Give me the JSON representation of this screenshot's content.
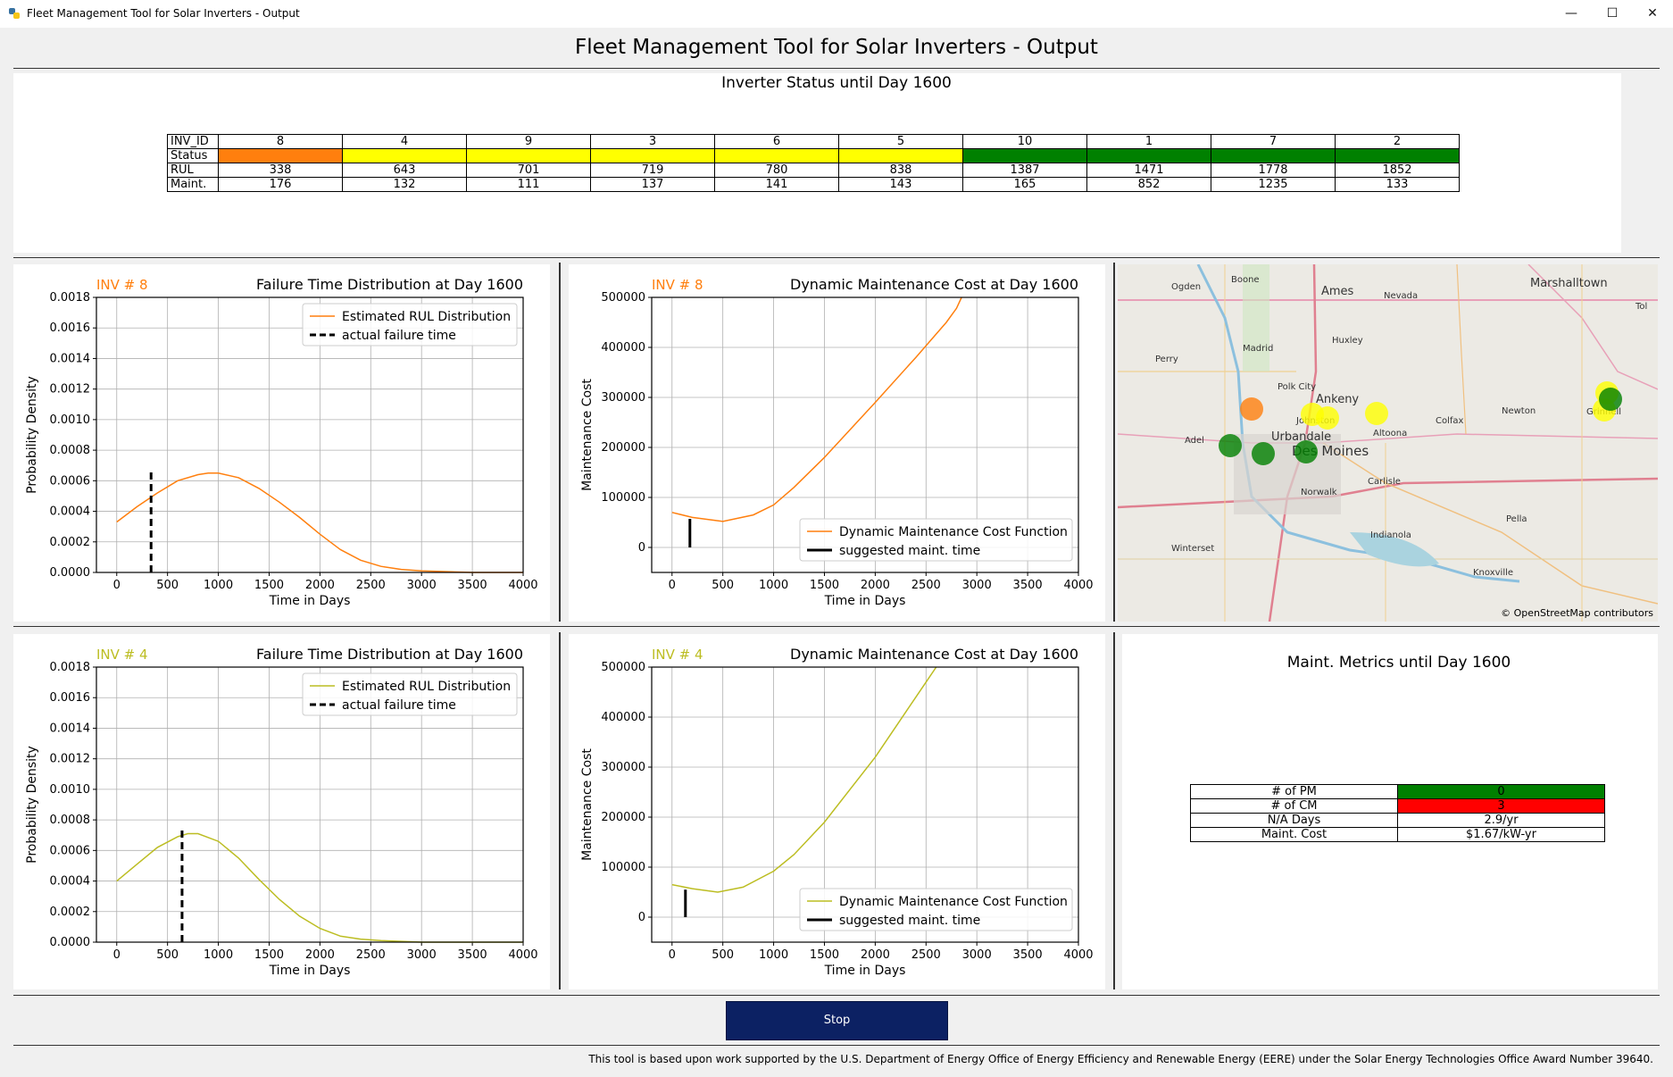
{
  "window": {
    "title": "Fleet Management Tool for Solar Inverters - Output",
    "minimize_icon": "minimize-icon",
    "maximize_icon": "maximize-icon",
    "close_icon": "close-icon"
  },
  "main_title": "Fleet Management Tool for Solar Inverters - Output",
  "status_panel": {
    "title": "Inverter Status until Day 1600",
    "row_labels": [
      "INV_ID",
      "Status",
      "RUL",
      "Maint."
    ],
    "inv_ids": [
      "8",
      "4",
      "9",
      "3",
      "6",
      "5",
      "10",
      "1",
      "7",
      "2"
    ],
    "status_colors": [
      "#ff7f0e",
      "#ffff00",
      "#ffff00",
      "#ffff00",
      "#ffff00",
      "#ffff00",
      "#008000",
      "#008000",
      "#008000",
      "#008000"
    ],
    "rul": [
      "338",
      "643",
      "701",
      "719",
      "780",
      "838",
      "1387",
      "1471",
      "1778",
      "1852"
    ],
    "maint": [
      "176",
      "132",
      "111",
      "137",
      "141",
      "143",
      "165",
      "852",
      "1235",
      "133"
    ]
  },
  "plots": {
    "p1": {
      "inv_label": "INV # 8",
      "title": "Failure Time Distribution at Day 1600",
      "legend": [
        "Estimated RUL Distribution",
        "actual failure time"
      ],
      "xlabel": "Time in Days",
      "ylabel": "Probability Density"
    },
    "p2": {
      "inv_label": "INV # 8",
      "title": "Dynamic Maintenance Cost at Day 1600",
      "legend": [
        "Dynamic Maintenance Cost Function",
        "suggested maint. time"
      ],
      "xlabel": "Time in Days",
      "ylabel": "Maintenance Cost"
    },
    "p3": {
      "inv_label": "INV # 4",
      "title": "Failure Time Distribution at Day 1600",
      "legend": [
        "Estimated RUL Distribution",
        "actual failure time"
      ],
      "xlabel": "Time in Days",
      "ylabel": "Probability Density"
    },
    "p4": {
      "inv_label": "INV # 4",
      "title": "Dynamic Maintenance Cost at Day 1600",
      "legend": [
        "Dynamic Maintenance Cost Function",
        "suggested maint. time"
      ],
      "xlabel": "Time in Days",
      "ylabel": "Maintenance Cost"
    }
  },
  "chart_data": [
    {
      "type": "line",
      "id": "p1",
      "title": "Failure Time Distribution at Day 1600",
      "xlabel": "Time in Days",
      "ylabel": "Probability Density",
      "xlim": [
        -200,
        4000
      ],
      "ylim": [
        0,
        0.0018
      ],
      "xticks": [
        "0",
        "500",
        "1000",
        "1500",
        "2000",
        "2500",
        "3000",
        "3500",
        "4000"
      ],
      "yticks": [
        "0.0000",
        "0.0002",
        "0.0004",
        "0.0006",
        "0.0008",
        "0.0010",
        "0.0012",
        "0.0014",
        "0.0016",
        "0.0018"
      ],
      "grid": true,
      "legend_position": "top-right",
      "series": [
        {
          "name": "Estimated RUL Distribution",
          "color": "#ff7f0e",
          "x": [
            0,
            200,
            400,
            600,
            800,
            900,
            1000,
            1200,
            1400,
            1600,
            1800,
            2000,
            2200,
            2400,
            2600,
            2800,
            3000,
            3500,
            4000
          ],
          "y": [
            0.00033,
            0.00043,
            0.00052,
            0.0006,
            0.00064,
            0.00065,
            0.00065,
            0.00062,
            0.00055,
            0.00046,
            0.00036,
            0.00025,
            0.00015,
            8e-05,
            4e-05,
            2e-05,
            1e-05,
            0.0,
            0.0
          ]
        }
      ],
      "marker": {
        "name": "actual failure time",
        "x": 338,
        "y_top": 0.00067,
        "style": "dashed"
      }
    },
    {
      "type": "line",
      "id": "p2",
      "title": "Dynamic Maintenance Cost at Day 1600",
      "xlabel": "Time in Days",
      "ylabel": "Maintenance Cost",
      "xlim": [
        -200,
        4000
      ],
      "ylim": [
        -50000,
        500000
      ],
      "xticks": [
        "0",
        "500",
        "1000",
        "1500",
        "2000",
        "2500",
        "3000",
        "3500",
        "4000"
      ],
      "yticks": [
        "0",
        "100000",
        "200000",
        "300000",
        "400000",
        "500000"
      ],
      "grid": true,
      "legend_position": "bottom-right",
      "series": [
        {
          "name": "Dynamic Maintenance Cost Function",
          "color": "#ff7f0e",
          "x": [
            0,
            200,
            500,
            800,
            1000,
            1200,
            1500,
            2000,
            2400,
            2700,
            2800,
            2850
          ],
          "y": [
            70000,
            60000,
            52000,
            65000,
            85000,
            120000,
            180000,
            290000,
            380000,
            450000,
            478000,
            500000
          ]
        }
      ],
      "marker": {
        "name": "suggested maint. time",
        "x": 176,
        "y0": 0,
        "y1": 57000,
        "style": "solid"
      }
    },
    {
      "type": "line",
      "id": "p3",
      "title": "Failure Time Distribution at Day 1600",
      "xlabel": "Time in Days",
      "ylabel": "Probability Density",
      "xlim": [
        -200,
        4000
      ],
      "ylim": [
        0,
        0.0018
      ],
      "xticks": [
        "0",
        "500",
        "1000",
        "1500",
        "2000",
        "2500",
        "3000",
        "3500",
        "4000"
      ],
      "yticks": [
        "0.0000",
        "0.0002",
        "0.0004",
        "0.0006",
        "0.0008",
        "0.0010",
        "0.0012",
        "0.0014",
        "0.0016",
        "0.0018"
      ],
      "grid": true,
      "legend_position": "top-right",
      "series": [
        {
          "name": "Estimated RUL Distribution",
          "color": "#bcbd22",
          "x": [
            0,
            200,
            400,
            600,
            700,
            800,
            1000,
            1200,
            1400,
            1600,
            1800,
            2000,
            2200,
            2400,
            2600,
            3000,
            3500,
            4000
          ],
          "y": [
            0.0004,
            0.00051,
            0.00062,
            0.00069,
            0.00071,
            0.00071,
            0.00066,
            0.00055,
            0.00041,
            0.00028,
            0.00017,
            9e-05,
            4e-05,
            2e-05,
            1e-05,
            0.0,
            0.0,
            0.0
          ]
        }
      ],
      "marker": {
        "name": "actual failure time",
        "x": 643,
        "y_top": 0.00075,
        "style": "dashed"
      }
    },
    {
      "type": "line",
      "id": "p4",
      "title": "Dynamic Maintenance Cost at Day 1600",
      "xlabel": "Time in Days",
      "ylabel": "Maintenance Cost",
      "xlim": [
        -200,
        4000
      ],
      "ylim": [
        -50000,
        500000
      ],
      "xticks": [
        "0",
        "500",
        "1000",
        "1500",
        "2000",
        "2500",
        "3000",
        "3500",
        "4000"
      ],
      "yticks": [
        "0",
        "100000",
        "200000",
        "300000",
        "400000",
        "500000"
      ],
      "grid": true,
      "legend_position": "bottom-right",
      "series": [
        {
          "name": "Dynamic Maintenance Cost Function",
          "color": "#bcbd22",
          "x": [
            0,
            200,
            450,
            700,
            1000,
            1200,
            1500,
            2000,
            2300,
            2500,
            2600
          ],
          "y": [
            65000,
            57000,
            50000,
            60000,
            92000,
            125000,
            190000,
            320000,
            410000,
            470000,
            500000
          ]
        }
      ],
      "marker": {
        "name": "suggested maint. time",
        "x": 132,
        "y0": 0,
        "y1": 55000,
        "style": "solid"
      }
    }
  ],
  "map": {
    "attribution": "© OpenStreetMap contributors",
    "places": [
      "Boone",
      "Ogden",
      "Ames",
      "Nevada",
      "Marshalltown",
      "Madrid",
      "Huxley",
      "Perry",
      "Polk City",
      "Ankeny",
      "Johnston",
      "Newton",
      "Colfax",
      "Altoona",
      "Adel",
      "Urbandale",
      "Des Moines",
      "Carlisle",
      "Norwalk",
      "Pella",
      "Indianola",
      "Winterset",
      "Knoxville",
      "Grinnell",
      "Tol"
    ],
    "inverter_marker_colors": [
      "#ffff00",
      "#ff7f0e",
      "#008000"
    ]
  },
  "metrics_panel": {
    "title": "Maint. Metrics until Day 1600",
    "rows": [
      {
        "label": "# of PM",
        "value": "0",
        "color": "#008000"
      },
      {
        "label": "# of CM",
        "value": "3",
        "color": "#ff0000"
      },
      {
        "label": "N/A Days",
        "value": "2.9/yr",
        "color": "#ffffff"
      },
      {
        "label": "Maint. Cost",
        "value": "$1.67/kW-yr",
        "color": "#ffffff"
      }
    ]
  },
  "stop_button": "Stop",
  "footer": "This tool is based upon work supported by the U.S. Department of Energy Office of Energy Efficiency and Renewable Energy (EERE) under the Solar Energy Technologies Office Award Number 39640."
}
